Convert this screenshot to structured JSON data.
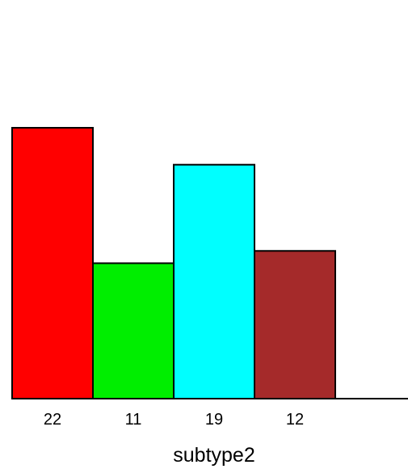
{
  "chart_data": {
    "type": "bar",
    "categories": [
      "22",
      "11",
      "19",
      "12"
    ],
    "values": [
      22,
      11,
      19,
      12
    ],
    "colors": [
      "#ff0000",
      "#00ee00",
      "#00ffff",
      "#a52a2a"
    ],
    "xlabel": "subtype2",
    "ylabel": "",
    "ylim": [
      0,
      22
    ],
    "grid": false,
    "legend": "none"
  }
}
